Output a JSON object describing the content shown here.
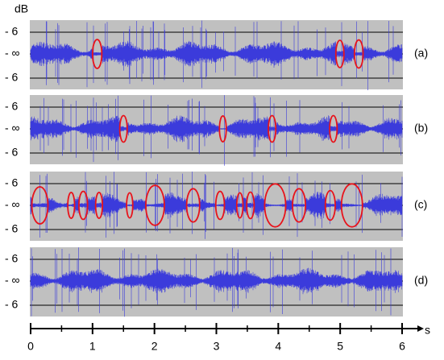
{
  "chart_data": {
    "type": "waveform",
    "y_unit": "dB",
    "level_labels": [
      "- 6",
      "- ∞",
      "- 6"
    ],
    "x_unit": "s",
    "xlim": [
      0,
      6
    ],
    "xticks": [
      0,
      1,
      2,
      3,
      4,
      5,
      6
    ],
    "minor_xticks": [
      0.5,
      1.5,
      2.5,
      3.5,
      4.5,
      5.5
    ],
    "wave_color": "#3b3bdb",
    "highlight_color": "#e8131b",
    "panels": [
      {
        "label": "(a)",
        "highlights": [
          [
            1.0,
            1.15
          ],
          [
            4.93,
            5.06
          ],
          [
            5.23,
            5.37
          ]
        ]
      },
      {
        "label": "(b)",
        "highlights": [
          [
            1.44,
            1.56
          ],
          [
            3.05,
            3.16
          ],
          [
            3.84,
            3.96
          ],
          [
            4.83,
            4.95
          ]
        ]
      },
      {
        "label": "(c)",
        "highlights": [
          [
            0.02,
            0.28
          ],
          [
            0.6,
            0.71
          ],
          [
            0.78,
            0.92
          ],
          [
            1.05,
            1.16
          ],
          [
            1.55,
            1.65
          ],
          [
            1.86,
            2.16
          ],
          [
            2.52,
            2.73
          ],
          [
            2.99,
            3.13
          ],
          [
            3.33,
            3.43
          ],
          [
            3.49,
            3.61
          ],
          [
            3.78,
            4.12
          ],
          [
            4.23,
            4.44
          ],
          [
            4.76,
            4.92
          ],
          [
            5.02,
            5.36
          ]
        ]
      },
      {
        "label": "(d)",
        "highlights": []
      }
    ]
  }
}
